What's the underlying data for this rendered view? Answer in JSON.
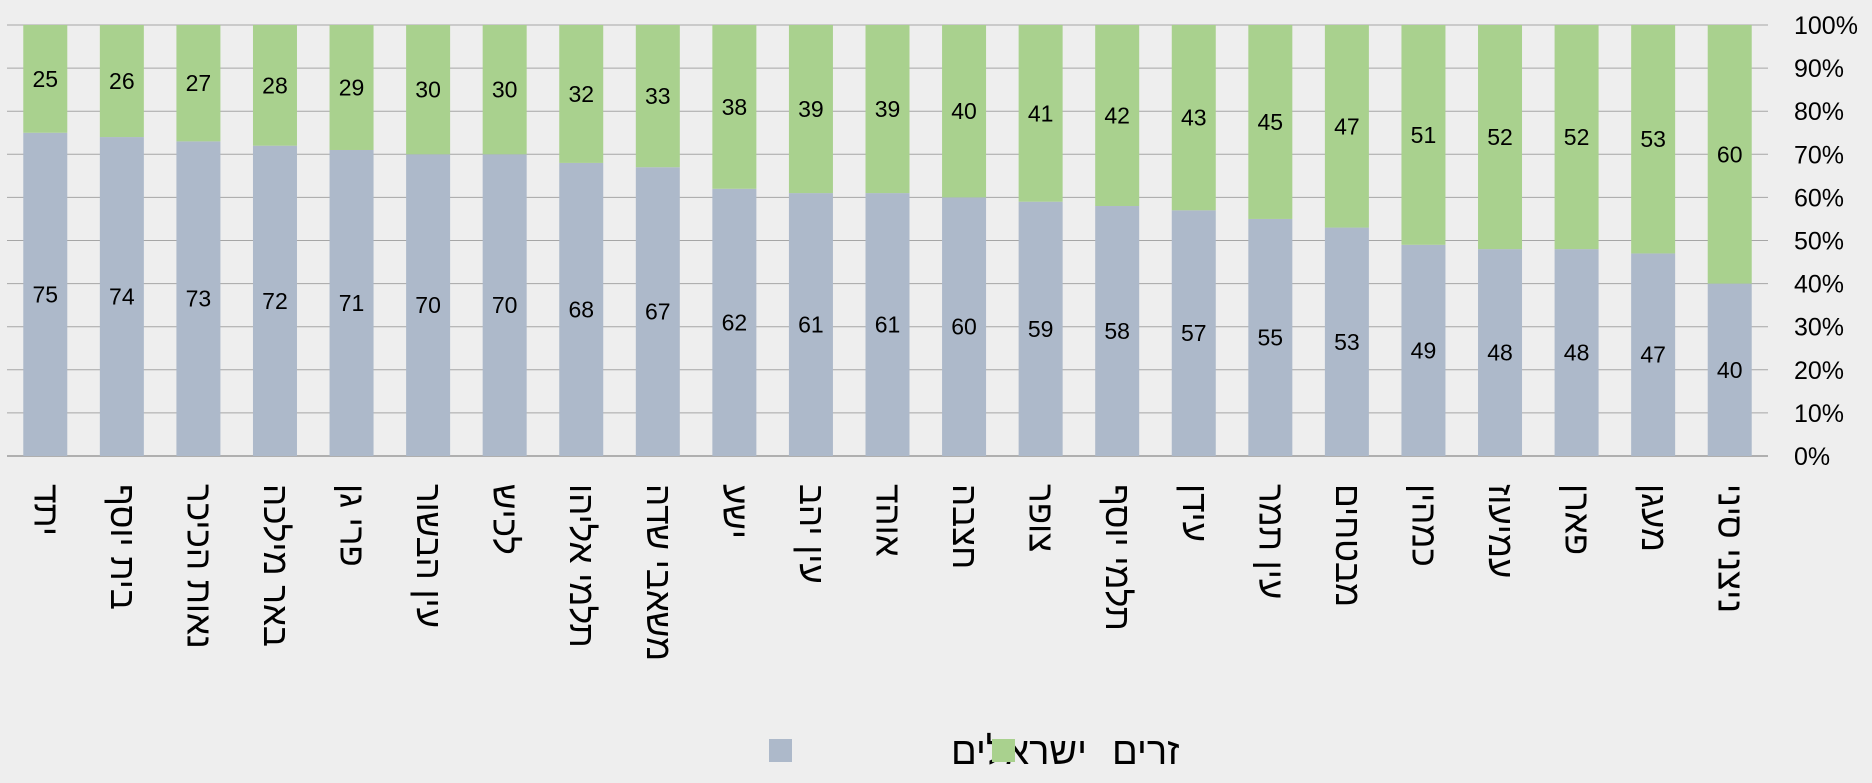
{
  "chart_data": {
    "type": "bar",
    "stacked": true,
    "categories": [
      "יתד",
      "בית יוסף",
      "נאות הכיכר",
      "באר מילכה",
      "פרי גן",
      "עין הבשור",
      "לכיש",
      "תלמי אליהו",
      "משאבי שדה",
      "ישע",
      "עין יהב",
      "אוהד",
      "חצבה",
      "צופר",
      "תלמי יוסף",
      "עידן",
      "עין תמר",
      "מבטחים",
      "כמהין",
      "עמיעוז",
      "פארן",
      "מעגן",
      "ניצני סיני"
    ],
    "series": [
      {
        "name": "ישראלים",
        "color": "#adb9ca",
        "values": [
          75,
          74,
          73,
          72,
          71,
          70,
          70,
          68,
          67,
          62,
          61,
          61,
          60,
          59,
          58,
          57,
          55,
          53,
          49,
          48,
          48,
          47,
          40
        ]
      },
      {
        "name": "זרים",
        "color": "#a9d18e",
        "values": [
          25,
          26,
          27,
          28,
          29,
          30,
          30,
          32,
          33,
          38,
          39,
          39,
          40,
          41,
          42,
          43,
          45,
          47,
          51,
          52,
          52,
          53,
          60
        ]
      }
    ],
    "yticks": [
      "0%",
      "10%",
      "20%",
      "30%",
      "40%",
      "50%",
      "60%",
      "70%",
      "80%",
      "90%",
      "100%"
    ],
    "ylim": [
      0,
      100
    ],
    "grid": true,
    "legend": "bottom"
  }
}
